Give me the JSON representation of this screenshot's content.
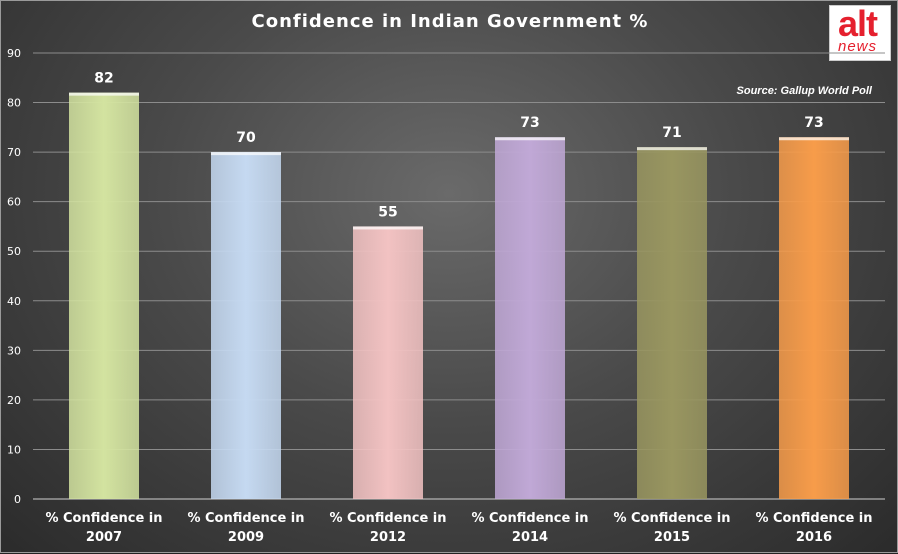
{
  "title": "Confidence in Indian Government %",
  "source": "Source: Gallup World Poll",
  "logo": {
    "line1": "alt",
    "line2": "news"
  },
  "chart_data": {
    "type": "bar",
    "title": "Confidence in Indian Government %",
    "categories": [
      [
        "% Confidence in",
        "2007"
      ],
      [
        "% Confidence in",
        "2009"
      ],
      [
        "% Confidence in",
        "2012"
      ],
      [
        "% Confidence in",
        "2014"
      ],
      [
        "% Confidence in",
        "2015"
      ],
      [
        "% Confidence in",
        "2016"
      ]
    ],
    "values": [
      82,
      70,
      55,
      73,
      71,
      73
    ],
    "colors": [
      "#d3e3a0",
      "#c5d9f1",
      "#f2c2c2",
      "#c0a8d6",
      "#999660",
      "#f79c4a"
    ],
    "ylim": [
      0,
      90
    ],
    "yticks": [
      0,
      10,
      20,
      30,
      40,
      50,
      60,
      70,
      80,
      90
    ],
    "grid": true,
    "xlabel": "",
    "ylabel": ""
  }
}
